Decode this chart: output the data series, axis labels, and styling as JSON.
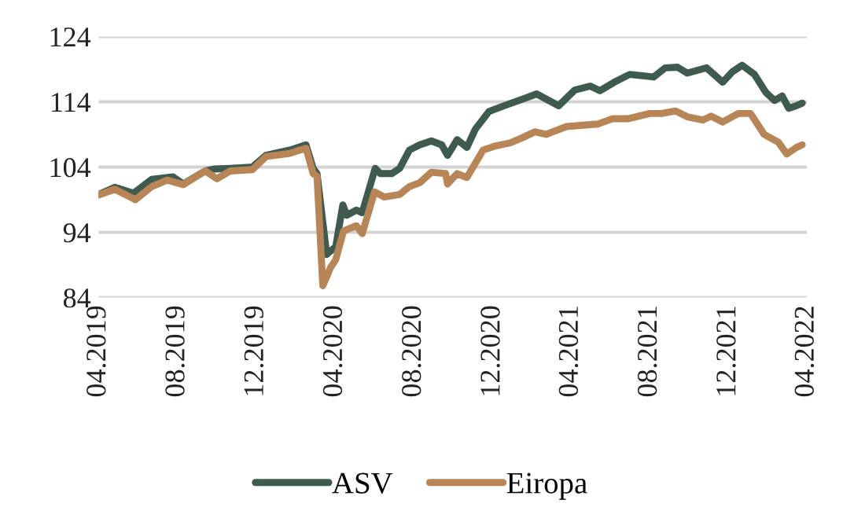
{
  "chart_data": {
    "type": "line",
    "legend": "bottom",
    "grid": "y",
    "line_style": "solid",
    "xlim": [
      "2019-04-01",
      "2022-04-01"
    ],
    "xticks": [
      {
        "value": "2019-04-01",
        "label": "04.2019"
      },
      {
        "value": "2019-08-01",
        "label": "08.2019"
      },
      {
        "value": "2019-12-01",
        "label": "12.2019"
      },
      {
        "value": "2020-04-01",
        "label": "04.2020"
      },
      {
        "value": "2020-08-01",
        "label": "08.2020"
      },
      {
        "value": "2020-12-01",
        "label": "12.2020"
      },
      {
        "value": "2021-04-01",
        "label": "04.2021"
      },
      {
        "value": "2021-08-01",
        "label": "08.2021"
      },
      {
        "value": "2021-12-01",
        "label": "12.2021"
      },
      {
        "value": "2022-04-01",
        "label": "04.2022"
      }
    ],
    "ylim": [
      84,
      124
    ],
    "yticks": [
      84,
      94,
      104,
      114,
      124
    ],
    "series": [
      {
        "name": "ASV",
        "color": "#3f5a4e",
        "x": [
          "2019-04-01",
          "2019-04-26",
          "2019-05-25",
          "2019-06-22",
          "2019-07-25",
          "2019-08-10",
          "2019-09-13",
          "2019-09-28",
          "2019-10-22",
          "2019-11-25",
          "2019-12-16",
          "2020-01-22",
          "2020-02-16",
          "2020-02-27",
          "2020-03-04",
          "2020-03-19",
          "2020-04-02",
          "2020-04-13",
          "2020-04-19",
          "2020-05-04",
          "2020-05-13",
          "2020-06-02",
          "2020-06-10",
          "2020-06-28",
          "2020-07-10",
          "2020-07-25",
          "2020-08-10",
          "2020-08-28",
          "2020-09-13",
          "2020-09-22",
          "2020-10-07",
          "2020-10-22",
          "2020-11-04",
          "2020-11-25",
          "2020-12-19",
          "2021-01-16",
          "2021-02-07",
          "2021-03-13",
          "2021-04-07",
          "2021-05-01",
          "2021-05-16",
          "2021-06-07",
          "2021-07-01",
          "2021-08-07",
          "2021-08-25",
          "2021-09-13",
          "2021-09-28",
          "2021-10-28",
          "2021-11-22",
          "2021-12-07",
          "2021-12-22",
          "2022-01-10",
          "2022-01-28",
          "2022-02-10",
          "2022-02-22",
          "2022-03-04",
          "2022-03-16",
          "2022-03-25"
        ],
        "values": [
          99.8,
          100.9,
          100,
          102.1,
          102.5,
          101.4,
          103.4,
          103.7,
          103.8,
          104,
          105.8,
          106.6,
          107.4,
          103.8,
          103,
          90.6,
          91.8,
          98.2,
          96.6,
          97.4,
          97,
          103.8,
          103,
          103,
          103.8,
          106.6,
          107.4,
          108,
          107.4,
          105.8,
          108.2,
          107,
          109.8,
          112.5,
          113.4,
          114.4,
          115.2,
          113.4,
          115.8,
          116.4,
          115.7,
          117,
          118.2,
          117.8,
          119.2,
          119.3,
          118.4,
          119.2,
          117,
          118.6,
          119.6,
          118.2,
          115.4,
          114.2,
          114.9,
          113,
          113.4,
          113.8
        ]
      },
      {
        "name": "Eiropa",
        "color": "#b88656",
        "x": [
          "2019-04-01",
          "2019-04-26",
          "2019-05-28",
          "2019-06-22",
          "2019-07-16",
          "2019-08-10",
          "2019-09-13",
          "2019-10-01",
          "2019-10-22",
          "2019-11-25",
          "2019-12-16",
          "2020-01-22",
          "2020-02-16",
          "2020-02-27",
          "2020-03-04",
          "2020-03-13",
          "2020-03-25",
          "2020-04-02",
          "2020-04-14",
          "2020-05-04",
          "2020-05-13",
          "2020-06-01",
          "2020-06-16",
          "2020-07-10",
          "2020-07-25",
          "2020-08-10",
          "2020-08-28",
          "2020-09-19",
          "2020-09-22",
          "2020-10-07",
          "2020-10-22",
          "2020-11-16",
          "2020-12-04",
          "2020-12-28",
          "2021-01-16",
          "2021-02-04",
          "2021-02-22",
          "2021-03-04",
          "2021-03-25",
          "2021-05-01",
          "2021-05-13",
          "2021-06-04",
          "2021-06-28",
          "2021-08-01",
          "2021-08-19",
          "2021-09-10",
          "2021-09-28",
          "2021-10-22",
          "2021-11-04",
          "2021-11-22",
          "2021-12-16",
          "2022-01-04",
          "2022-01-25",
          "2022-02-16",
          "2022-03-01",
          "2022-03-16",
          "2022-03-25"
        ],
        "values": [
          99.7,
          100.6,
          99,
          101,
          102,
          101.3,
          103.4,
          102.2,
          103.4,
          103.6,
          105.6,
          106.1,
          106.9,
          103,
          102.6,
          85.8,
          88.6,
          89.8,
          94.2,
          95,
          93.8,
          100.2,
          99.4,
          99.8,
          101,
          101.6,
          103.2,
          103,
          101.4,
          103,
          102.4,
          106.6,
          107.2,
          107.7,
          108.5,
          109.4,
          109,
          109.4,
          110.2,
          110.5,
          110.6,
          111.4,
          111.4,
          112.2,
          112.2,
          112.6,
          111.7,
          111.2,
          111.8,
          110.9,
          112.2,
          112.2,
          109,
          107.8,
          106,
          107,
          107.4
        ]
      }
    ]
  }
}
